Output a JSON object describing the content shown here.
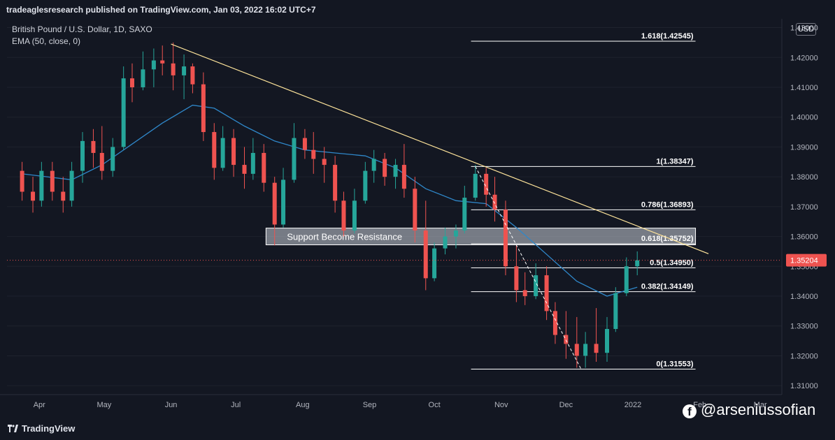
{
  "header": {
    "text": "tradeaglesresearch published on TradingView.com, Jan 03, 2022 16:02 UTC+7"
  },
  "legend": {
    "symbol": "British Pound / U.S. Dollar, 1D, SAXO",
    "indicator": "EMA (50, close, 0)"
  },
  "currency_button": "USD",
  "footer": {
    "logo_text": "TradingView"
  },
  "watermark": {
    "text": "@arseniussofian",
    "icon": "facebook-icon"
  },
  "colors": {
    "background": "#131722",
    "bullish": "#26a69a",
    "bearish": "#ef5350",
    "ema": "#2f87c9",
    "trendline": "#ffe59b",
    "fib": "#ffffff",
    "price_tag": "#ef5350"
  },
  "chart_data": {
    "type": "candlestick",
    "title": "British Pound / U.S. Dollar, 1D, SAXO",
    "ylim": [
      1.307,
      1.432
    ],
    "y_ticks": [
      "1.43000",
      "1.42000",
      "1.41000",
      "1.40000",
      "1.39000",
      "1.38000",
      "1.37000",
      "1.36000",
      "1.35000",
      "1.34000",
      "1.33000",
      "1.32000",
      "1.31000"
    ],
    "x_ticks": [
      "Apr",
      "May",
      "Jun",
      "Jul",
      "Aug",
      "Sep",
      "Oct",
      "Nov",
      "Dec",
      "2022",
      "Feb",
      "Mar"
    ],
    "last_price": "1.35204",
    "fib_levels": [
      {
        "label": "1.618(1.42545)",
        "value": 1.42545
      },
      {
        "label": "1(1.38347)",
        "value": 1.38347
      },
      {
        "label": "0.786(1.36893)",
        "value": 1.36893
      },
      {
        "label": "0.618(1.35752)",
        "value": 1.35752
      },
      {
        "label": "0.5(1.34950)",
        "value": 1.3495
      },
      {
        "label": "0.382(1.34149)",
        "value": 1.34149
      },
      {
        "label": "0(1.31553)",
        "value": 1.31553
      }
    ],
    "zone": {
      "label": "Support Become Resistance",
      "top": 1.3628,
      "bottom": 1.3572
    },
    "trendline": {
      "start": {
        "date": "2021-06-01",
        "price": 1.4245
      },
      "end": {
        "date": "2022-02-05",
        "price": 1.3542
      }
    },
    "ohlc": [
      {
        "date": "2021-03-24",
        "o": 1.382,
        "h": 1.385,
        "l": 1.372,
        "c": 1.375
      },
      {
        "date": "2021-03-29",
        "o": 1.375,
        "h": 1.38,
        "l": 1.368,
        "c": 1.372
      },
      {
        "date": "2021-04-02",
        "o": 1.372,
        "h": 1.385,
        "l": 1.37,
        "c": 1.382
      },
      {
        "date": "2021-04-07",
        "o": 1.382,
        "h": 1.385,
        "l": 1.372,
        "c": 1.375
      },
      {
        "date": "2021-04-12",
        "o": 1.375,
        "h": 1.38,
        "l": 1.368,
        "c": 1.372
      },
      {
        "date": "2021-04-16",
        "o": 1.372,
        "h": 1.385,
        "l": 1.37,
        "c": 1.382
      },
      {
        "date": "2021-04-21",
        "o": 1.382,
        "h": 1.395,
        "l": 1.378,
        "c": 1.392
      },
      {
        "date": "2021-04-26",
        "o": 1.392,
        "h": 1.396,
        "l": 1.383,
        "c": 1.388
      },
      {
        "date": "2021-04-30",
        "o": 1.388,
        "h": 1.397,
        "l": 1.379,
        "c": 1.382
      },
      {
        "date": "2021-05-05",
        "o": 1.382,
        "h": 1.393,
        "l": 1.38,
        "c": 1.39
      },
      {
        "date": "2021-05-10",
        "o": 1.39,
        "h": 1.417,
        "l": 1.389,
        "c": 1.413
      },
      {
        "date": "2021-05-14",
        "o": 1.413,
        "h": 1.418,
        "l": 1.405,
        "c": 1.41
      },
      {
        "date": "2021-05-19",
        "o": 1.41,
        "h": 1.422,
        "l": 1.409,
        "c": 1.416
      },
      {
        "date": "2021-05-24",
        "o": 1.416,
        "h": 1.423,
        "l": 1.41,
        "c": 1.419
      },
      {
        "date": "2021-05-28",
        "o": 1.419,
        "h": 1.424,
        "l": 1.414,
        "c": 1.418
      },
      {
        "date": "2021-06-02",
        "o": 1.418,
        "h": 1.425,
        "l": 1.409,
        "c": 1.414
      },
      {
        "date": "2021-06-07",
        "o": 1.414,
        "h": 1.421,
        "l": 1.406,
        "c": 1.417
      },
      {
        "date": "2021-06-11",
        "o": 1.417,
        "h": 1.418,
        "l": 1.408,
        "c": 1.411
      },
      {
        "date": "2021-06-16",
        "o": 1.411,
        "h": 1.415,
        "l": 1.392,
        "c": 1.395
      },
      {
        "date": "2021-06-21",
        "o": 1.395,
        "h": 1.398,
        "l": 1.379,
        "c": 1.383
      },
      {
        "date": "2021-06-25",
        "o": 1.383,
        "h": 1.397,
        "l": 1.382,
        "c": 1.393
      },
      {
        "date": "2021-06-30",
        "o": 1.393,
        "h": 1.396,
        "l": 1.38,
        "c": 1.384
      },
      {
        "date": "2021-07-05",
        "o": 1.384,
        "h": 1.39,
        "l": 1.376,
        "c": 1.381
      },
      {
        "date": "2021-07-09",
        "o": 1.381,
        "h": 1.393,
        "l": 1.379,
        "c": 1.388
      },
      {
        "date": "2021-07-14",
        "o": 1.388,
        "h": 1.391,
        "l": 1.375,
        "c": 1.378
      },
      {
        "date": "2021-07-19",
        "o": 1.378,
        "h": 1.38,
        "l": 1.357,
        "c": 1.364
      },
      {
        "date": "2021-07-23",
        "o": 1.364,
        "h": 1.383,
        "l": 1.363,
        "c": 1.379
      },
      {
        "date": "2021-07-28",
        "o": 1.379,
        "h": 1.398,
        "l": 1.378,
        "c": 1.393
      },
      {
        "date": "2021-08-02",
        "o": 1.393,
        "h": 1.396,
        "l": 1.386,
        "c": 1.389
      },
      {
        "date": "2021-08-06",
        "o": 1.389,
        "h": 1.395,
        "l": 1.381,
        "c": 1.386
      },
      {
        "date": "2021-08-11",
        "o": 1.386,
        "h": 1.39,
        "l": 1.378,
        "c": 1.384
      },
      {
        "date": "2021-08-16",
        "o": 1.384,
        "h": 1.387,
        "l": 1.368,
        "c": 1.372
      },
      {
        "date": "2021-08-20",
        "o": 1.372,
        "h": 1.375,
        "l": 1.36,
        "c": 1.362
      },
      {
        "date": "2021-08-25",
        "o": 1.362,
        "h": 1.376,
        "l": 1.361,
        "c": 1.372
      },
      {
        "date": "2021-08-30",
        "o": 1.372,
        "h": 1.385,
        "l": 1.371,
        "c": 1.382
      },
      {
        "date": "2021-09-03",
        "o": 1.382,
        "h": 1.389,
        "l": 1.378,
        "c": 1.386
      },
      {
        "date": "2021-09-08",
        "o": 1.386,
        "h": 1.388,
        "l": 1.377,
        "c": 1.38
      },
      {
        "date": "2021-09-13",
        "o": 1.38,
        "h": 1.386,
        "l": 1.376,
        "c": 1.384
      },
      {
        "date": "2021-09-17",
        "o": 1.384,
        "h": 1.391,
        "l": 1.373,
        "c": 1.376
      },
      {
        "date": "2021-09-22",
        "o": 1.376,
        "h": 1.38,
        "l": 1.358,
        "c": 1.362
      },
      {
        "date": "2021-09-27",
        "o": 1.362,
        "h": 1.372,
        "l": 1.342,
        "c": 1.346
      },
      {
        "date": "2021-10-01",
        "o": 1.346,
        "h": 1.358,
        "l": 1.345,
        "c": 1.356
      },
      {
        "date": "2021-10-06",
        "o": 1.356,
        "h": 1.363,
        "l": 1.354,
        "c": 1.36
      },
      {
        "date": "2021-10-11",
        "o": 1.36,
        "h": 1.364,
        "l": 1.356,
        "c": 1.362
      },
      {
        "date": "2021-10-15",
        "o": 1.362,
        "h": 1.377,
        "l": 1.361,
        "c": 1.373
      },
      {
        "date": "2021-10-20",
        "o": 1.373,
        "h": 1.384,
        "l": 1.372,
        "c": 1.381
      },
      {
        "date": "2021-10-25",
        "o": 1.381,
        "h": 1.383,
        "l": 1.37,
        "c": 1.374
      },
      {
        "date": "2021-10-29",
        "o": 1.374,
        "h": 1.38,
        "l": 1.365,
        "c": 1.369
      },
      {
        "date": "2021-11-03",
        "o": 1.369,
        "h": 1.372,
        "l": 1.347,
        "c": 1.35
      },
      {
        "date": "2021-11-08",
        "o": 1.35,
        "h": 1.357,
        "l": 1.338,
        "c": 1.342
      },
      {
        "date": "2021-11-12",
        "o": 1.342,
        "h": 1.348,
        "l": 1.337,
        "c": 1.34
      },
      {
        "date": "2021-11-17",
        "o": 1.34,
        "h": 1.351,
        "l": 1.339,
        "c": 1.347
      },
      {
        "date": "2021-11-22",
        "o": 1.347,
        "h": 1.35,
        "l": 1.332,
        "c": 1.335
      },
      {
        "date": "2021-11-26",
        "o": 1.335,
        "h": 1.338,
        "l": 1.324,
        "c": 1.327
      },
      {
        "date": "2021-12-01",
        "o": 1.327,
        "h": 1.335,
        "l": 1.319,
        "c": 1.324
      },
      {
        "date": "2021-12-06",
        "o": 1.324,
        "h": 1.333,
        "l": 1.316,
        "c": 1.32
      },
      {
        "date": "2021-12-10",
        "o": 1.32,
        "h": 1.328,
        "l": 1.316,
        "c": 1.324
      },
      {
        "date": "2021-12-15",
        "o": 1.324,
        "h": 1.336,
        "l": 1.318,
        "c": 1.321
      },
      {
        "date": "2021-12-20",
        "o": 1.321,
        "h": 1.333,
        "l": 1.318,
        "c": 1.329
      },
      {
        "date": "2021-12-24",
        "o": 1.329,
        "h": 1.343,
        "l": 1.328,
        "c": 1.341
      },
      {
        "date": "2021-12-29",
        "o": 1.341,
        "h": 1.353,
        "l": 1.34,
        "c": 1.35
      },
      {
        "date": "2022-01-03",
        "o": 1.35,
        "h": 1.355,
        "l": 1.347,
        "c": 1.352
      }
    ],
    "ema": [
      {
        "date": "2021-03-24",
        "v": 1.381
      },
      {
        "date": "2021-04-16",
        "v": 1.379
      },
      {
        "date": "2021-04-30",
        "v": 1.384
      },
      {
        "date": "2021-05-14",
        "v": 1.391
      },
      {
        "date": "2021-05-28",
        "v": 1.398
      },
      {
        "date": "2021-06-11",
        "v": 1.404
      },
      {
        "date": "2021-06-21",
        "v": 1.403
      },
      {
        "date": "2021-07-05",
        "v": 1.397
      },
      {
        "date": "2021-07-19",
        "v": 1.392
      },
      {
        "date": "2021-08-02",
        "v": 1.389
      },
      {
        "date": "2021-08-16",
        "v": 1.388
      },
      {
        "date": "2021-08-30",
        "v": 1.387
      },
      {
        "date": "2021-09-13",
        "v": 1.383
      },
      {
        "date": "2021-09-27",
        "v": 1.376
      },
      {
        "date": "2021-10-11",
        "v": 1.372
      },
      {
        "date": "2021-10-25",
        "v": 1.371
      },
      {
        "date": "2021-11-08",
        "v": 1.363
      },
      {
        "date": "2021-11-22",
        "v": 1.354
      },
      {
        "date": "2021-12-06",
        "v": 1.345
      },
      {
        "date": "2021-12-20",
        "v": 1.34
      },
      {
        "date": "2022-01-03",
        "v": 1.343
      }
    ]
  }
}
